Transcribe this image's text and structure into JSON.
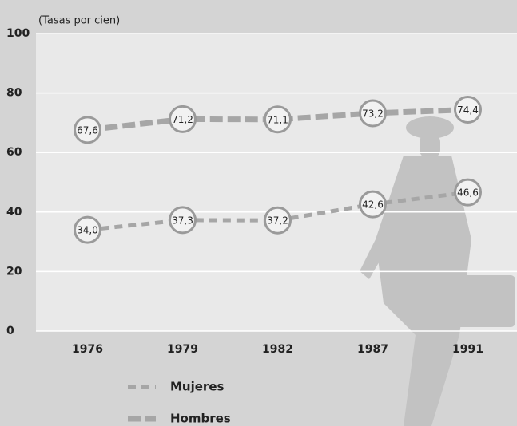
{
  "chart_data": {
    "type": "line",
    "y_label": "(Tasas por cien)",
    "categories": [
      "1976",
      "1979",
      "1982",
      "1987",
      "1991"
    ],
    "series": [
      {
        "name": "Mujeres",
        "color": "#a6a6a6",
        "style": "dashed",
        "values": [
          34.0,
          37.3,
          37.2,
          42.6,
          46.6
        ],
        "value_labels": [
          "34,0",
          "37,3",
          "37,2",
          "42,6",
          "46,6"
        ]
      },
      {
        "name": "Hombres",
        "color": "#a6a6a6",
        "style": "thick-dashed",
        "values": [
          67.6,
          71.2,
          71.1,
          73.2,
          74.4
        ],
        "value_labels": [
          "67,6",
          "71,2",
          "71,1",
          "73,2",
          "74,4"
        ]
      }
    ],
    "ylim": [
      0,
      100
    ],
    "yticks": [
      0,
      20,
      40,
      60,
      80,
      100
    ],
    "grid": true
  }
}
